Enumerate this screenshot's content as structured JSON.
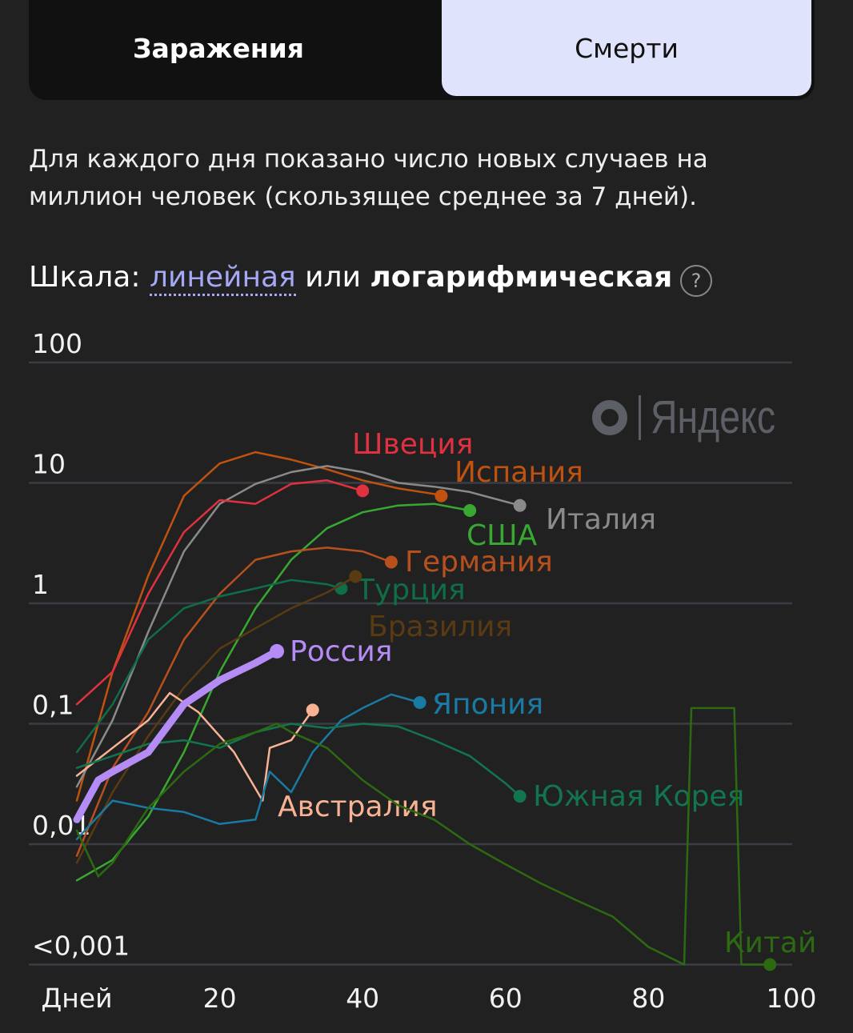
{
  "tabs": {
    "infections": "Заражения",
    "deaths": "Смерти",
    "active": "deaths"
  },
  "description": "Для каждого дня показано число новых случаев на миллион человек (скользящее среднее за 7 дней).",
  "scale": {
    "label": "Шкала:",
    "linear": "линейная",
    "or": "или",
    "log": "логарифмическая",
    "help": "?"
  },
  "logo": {
    "text": "Яндекс"
  },
  "chart_data": {
    "type": "line",
    "y_scale": "log",
    "ylim": [
      0.001,
      100
    ],
    "xlim": [
      0,
      100
    ],
    "xlabel": "Дней",
    "x_ticks": [
      "20",
      "40",
      "60",
      "80",
      "100"
    ],
    "x_tick_values": [
      20,
      40,
      60,
      80,
      100
    ],
    "y_ticks": [
      "100",
      "10",
      "1",
      "0,1",
      "0,01",
      "<0,001"
    ],
    "y_tick_values": [
      100,
      10,
      1,
      0.1,
      0.01,
      0.001
    ],
    "grid": true,
    "series": [
      {
        "name": "Испания",
        "color": "#c0520f",
        "x": [
          0,
          5,
          10,
          15,
          20,
          25,
          30,
          35,
          40,
          45,
          50,
          51
        ],
        "y": [
          0.023,
          0.27,
          1.7,
          7.8,
          14.5,
          18,
          15.6,
          13,
          10.5,
          9,
          8.1,
          7.8
        ]
      },
      {
        "name": "Италия",
        "color": "#8a8a8a",
        "x": [
          0,
          5,
          10,
          15,
          20,
          25,
          30,
          35,
          40,
          45,
          50,
          55,
          62
        ],
        "y": [
          0.03,
          0.107,
          0.58,
          2.7,
          6.7,
          9.8,
          12.3,
          13.8,
          12.3,
          10,
          9.3,
          8.4,
          6.5
        ]
      },
      {
        "name": "Швеция",
        "color": "#e0313f",
        "x": [
          0,
          5,
          10,
          15,
          20,
          25,
          30,
          35,
          40
        ],
        "y": [
          0.145,
          0.27,
          1.2,
          3.9,
          7.2,
          6.7,
          9.8,
          10.5,
          8.6
        ]
      },
      {
        "name": "США",
        "color": "#38a832",
        "x": [
          0,
          5,
          10,
          15,
          20,
          25,
          30,
          35,
          40,
          45,
          50,
          55
        ],
        "y": [
          0.005,
          0.0074,
          0.017,
          0.058,
          0.27,
          0.91,
          2.3,
          4.2,
          5.7,
          6.5,
          6.7,
          5.9
        ]
      },
      {
        "name": "Германия",
        "color": "#b8501e",
        "x": [
          0,
          5,
          10,
          15,
          20,
          25,
          30,
          35,
          40,
          44
        ],
        "y": [
          0.008,
          0.043,
          0.125,
          0.5,
          1.2,
          2.3,
          2.7,
          2.9,
          2.7,
          2.2
        ]
      },
      {
        "name": "Турция",
        "color": "#0f6e47",
        "x": [
          0,
          5,
          10,
          15,
          20,
          25,
          30,
          35,
          37
        ],
        "y": [
          0.058,
          0.145,
          0.5,
          0.91,
          1.14,
          1.33,
          1.56,
          1.44,
          1.33
        ]
      },
      {
        "name": "Бразилия",
        "color": "#5a3a12",
        "x": [
          0,
          5,
          10,
          15,
          20,
          25,
          30,
          35,
          39
        ],
        "y": [
          0.007,
          0.027,
          0.079,
          0.2,
          0.42,
          0.62,
          0.91,
          1.23,
          1.67
        ]
      },
      {
        "name": "Австралия",
        "color": "#f7b394",
        "x": [
          0,
          5,
          10,
          13,
          17,
          22,
          26,
          27,
          30,
          33
        ],
        "y": [
          0.037,
          0.063,
          0.107,
          0.18,
          0.125,
          0.058,
          0.023,
          0.063,
          0.073,
          0.13
        ]
      },
      {
        "name": "Япония",
        "color": "#1a7aa3",
        "x": [
          0,
          5,
          10,
          15,
          20,
          25,
          27,
          30,
          33,
          37,
          40,
          44,
          48
        ],
        "y": [
          0.011,
          0.023,
          0.02,
          0.0185,
          0.0147,
          0.016,
          0.04,
          0.027,
          0.058,
          0.107,
          0.135,
          0.175,
          0.15
        ]
      },
      {
        "name": "Южная Корея",
        "color": "#127550",
        "x": [
          0,
          5,
          10,
          15,
          20,
          25,
          30,
          35,
          40,
          45,
          50,
          55,
          60,
          62
        ],
        "y": [
          0.043,
          0.054,
          0.068,
          0.073,
          0.063,
          0.085,
          0.1,
          0.092,
          0.1,
          0.095,
          0.073,
          0.054,
          0.032,
          0.025
        ]
      },
      {
        "name": "Китай",
        "color": "#2c6a12",
        "x": [
          0,
          3,
          5,
          10,
          15,
          20,
          25,
          28,
          30,
          35,
          40,
          45,
          50,
          55,
          60,
          65,
          70,
          75,
          80,
          85,
          86,
          92,
          93,
          97
        ],
        "y": [
          0.013,
          0.0054,
          0.007,
          0.02,
          0.04,
          0.068,
          0.085,
          0.1,
          0.085,
          0.063,
          0.034,
          0.021,
          0.016,
          0.01,
          0.0068,
          0.0047,
          0.0034,
          0.0025,
          0.0014,
          0.001,
          0.135,
          0.135,
          0.001,
          0.001
        ]
      },
      {
        "name": "Россия",
        "color": "#b58cf5",
        "highlight": true,
        "x": [
          0,
          3,
          5,
          10,
          15,
          20,
          25,
          28
        ],
        "y": [
          0.016,
          0.034,
          0.04,
          0.058,
          0.145,
          0.23,
          0.32,
          0.4
        ]
      }
    ]
  }
}
